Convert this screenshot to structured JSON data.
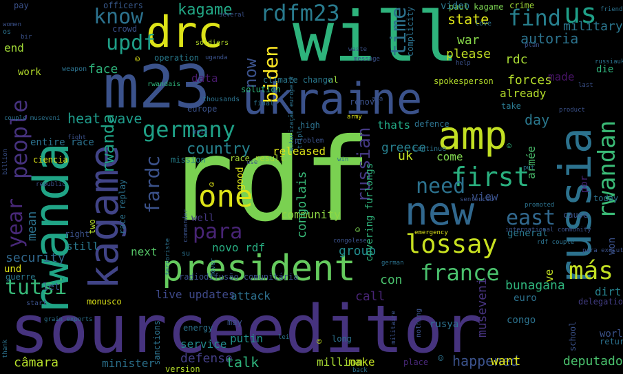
{
  "words": [
    {
      "text": "rdf",
      "color": "#7ad151"
    },
    {
      "text": "sourceeditor",
      "color": "#46337e"
    },
    {
      "text": "will",
      "color": "#2eb37c"
    },
    {
      "text": "m23",
      "color": "#3b528b"
    },
    {
      "text": "ukraine",
      "color": "#3b528b"
    },
    {
      "text": "president",
      "color": "#65cb5e"
    },
    {
      "text": "rwanda",
      "color": "#20a486"
    },
    {
      "text": "russia",
      "color": "#2c728e"
    },
    {
      "text": "kagame",
      "color": "#414487"
    },
    {
      "text": "drc",
      "color": "#dde318"
    },
    {
      "text": "amp",
      "color": "#c2df23"
    },
    {
      "text": "new",
      "color": "#31688e"
    },
    {
      "text": "lossay",
      "color": "#c8e020"
    },
    {
      "text": "one",
      "color": "#dde318"
    },
    {
      "text": "germany",
      "color": "#1fa187"
    },
    {
      "text": "first",
      "color": "#2ab07f"
    },
    {
      "text": "rwandan",
      "color": "#3aba76"
    },
    {
      "text": "más",
      "color": "#c2df23"
    },
    {
      "text": "france",
      "color": "#4ac16d"
    },
    {
      "text": "people",
      "color": "#46327e"
    },
    {
      "text": "year",
      "color": "#482878"
    },
    {
      "text": "fardc",
      "color": "#3b528b"
    },
    {
      "text": "updf",
      "color": "#1fa088"
    },
    {
      "text": "know",
      "color": "#2c728e"
    },
    {
      "text": "rdfm23",
      "color": "#297b8e"
    },
    {
      "text": "biden",
      "color": "#fde725"
    },
    {
      "text": "now",
      "color": "#3b528b"
    },
    {
      "text": "find",
      "color": "#27808e"
    },
    {
      "text": "us",
      "color": "#1fa088"
    },
    {
      "text": "time",
      "color": "#2c728e"
    },
    {
      "text": "para",
      "color": "#482475"
    },
    {
      "text": "need",
      "color": "#2c728e"
    },
    {
      "text": "east",
      "color": "#31688e"
    },
    {
      "text": "tutsi",
      "color": "#37b878"
    },
    {
      "text": "russian",
      "color": "#443983"
    },
    {
      "text": "country",
      "color": "#26828e"
    },
    {
      "text": "kagame",
      "color": "#22a785"
    },
    {
      "text": "military",
      "color": "#2a768e"
    },
    {
      "text": "autoria",
      "color": "#2c738e"
    },
    {
      "text": "rdc",
      "color": "#a8db34"
    },
    {
      "text": "please",
      "color": "#c2df23"
    },
    {
      "text": "forces",
      "color": "#b5de2b"
    },
    {
      "text": "state",
      "color": "#dde318"
    },
    {
      "text": "war",
      "color": "#86d549"
    },
    {
      "text": "day",
      "color": "#2a788e"
    },
    {
      "text": "heat wave",
      "color": "#1e9b8a"
    },
    {
      "text": "face",
      "color": "#2fb47c"
    },
    {
      "text": "data",
      "color": "#481a6c"
    },
    {
      "text": "mean",
      "color": "#2c728e"
    },
    {
      "text": "security",
      "color": "#31688e"
    },
    {
      "text": "end",
      "color": "#a2da37"
    },
    {
      "text": "released",
      "color": "#dde318"
    },
    {
      "text": "greece",
      "color": "#277f8e"
    },
    {
      "text": "uk",
      "color": "#c0df25"
    },
    {
      "text": "come",
      "color": "#7fd34e"
    },
    {
      "text": "thats",
      "color": "#22a884"
    },
    {
      "text": "view",
      "color": "#3b528b"
    },
    {
      "text": "already",
      "color": "#b5de2b"
    },
    {
      "text": "made",
      "color": "#471365"
    },
    {
      "text": "take",
      "color": "#2a788e"
    },
    {
      "text": "community",
      "color": "#8fd744"
    },
    {
      "text": "well",
      "color": "#453781"
    },
    {
      "text": "novo rdf",
      "color": "#27ad81"
    },
    {
      "text": "next",
      "color": "#56c667"
    },
    {
      "text": "still",
      "color": "#2a788e"
    },
    {
      "text": "group",
      "color": "#228b8d"
    },
    {
      "text": "con",
      "color": "#4ac16d"
    },
    {
      "text": "call",
      "color": "#482475"
    },
    {
      "text": "attack",
      "color": "#2d708e"
    },
    {
      "text": "live updates",
      "color": "#3e4989"
    },
    {
      "text": "bunagana",
      "color": "#2fb47c"
    },
    {
      "text": "euro",
      "color": "#2c728e"
    },
    {
      "text": "general",
      "color": "#2a788e"
    },
    {
      "text": "museveni",
      "color": "#46337e"
    },
    {
      "text": "happened",
      "color": "#3b528b"
    },
    {
      "text": "want",
      "color": "#dde318"
    },
    {
      "text": "deputados",
      "color": "#4ac16d"
    },
    {
      "text": "câmara",
      "color": "#b5de2b"
    },
    {
      "text": "minister",
      "color": "#2c728e"
    },
    {
      "text": "defense",
      "color": "#433e85"
    },
    {
      "text": "talk",
      "color": "#2fb47c"
    },
    {
      "text": "million",
      "color": "#a8db34"
    },
    {
      "text": "make",
      "color": "#c2df23"
    },
    {
      "text": "service",
      "color": "#238a8d"
    },
    {
      "text": "putin",
      "color": "#21918c"
    },
    {
      "text": "und",
      "color": "#dde318"
    },
    {
      "text": "guerre",
      "color": "#2a788e"
    },
    {
      "text": "entire race",
      "color": "#2c728e"
    },
    {
      "text": "work",
      "color": "#b5de2b"
    },
    {
      "text": "pay",
      "color": "#3b528b"
    },
    {
      "text": "officers",
      "color": "#38598c"
    },
    {
      "text": "paul kagame",
      "color": "#7ad151"
    },
    {
      "text": "crime",
      "color": "#a0da39"
    },
    {
      "text": "operation",
      "color": "#297b8e"
    },
    {
      "text": "soldiers",
      "color": "#b5de2b"
    },
    {
      "text": "video",
      "color": "#2a788e"
    },
    {
      "text": "al",
      "color": "#9bd93c"
    },
    {
      "text": "spokesperson",
      "color": "#b5de2b"
    },
    {
      "text": "climate change",
      "color": "#2a788e"
    },
    {
      "text": "solution",
      "color": "#2fb47c"
    },
    {
      "text": "europe",
      "color": "#3b528b"
    },
    {
      "text": "final",
      "color": "#2c728e"
    },
    {
      "text": "renova",
      "color": "#3b528b"
    },
    {
      "text": "high",
      "color": "#2c728e"
    },
    {
      "text": "defence",
      "color": "#2c728e"
    },
    {
      "text": "continue",
      "color": "#2c728e"
    },
    {
      "text": "mission",
      "color": "#26828e"
    },
    {
      "text": "race result",
      "color": "#a8db34"
    },
    {
      "text": "two",
      "color": "#b5de2b"
    },
    {
      "text": "race replay",
      "color": "#2c728e"
    },
    {
      "text": "covering furlongs",
      "color": "#2fb47c"
    },
    {
      "text": "congolais",
      "color": "#38b977"
    },
    {
      "text": "good",
      "color": "#dde318"
    },
    {
      "text": "won",
      "color": "#3b528b"
    },
    {
      "text": "today",
      "color": "#2c728e"
    },
    {
      "text": "cause",
      "color": "#3b528b"
    },
    {
      "text": "dirt",
      "color": "#26828e"
    },
    {
      "text": "ve",
      "color": "#c2df23"
    },
    {
      "text": "die",
      "color": "#2fb47c"
    },
    {
      "text": "por",
      "color": "#482475"
    },
    {
      "text": "armée",
      "color": "#4ac16d"
    },
    {
      "text": "right",
      "color": "#3b528b"
    },
    {
      "text": "congo",
      "color": "#2c728e"
    },
    {
      "text": "rusya",
      "color": "#2c728e"
    },
    {
      "text": "world",
      "color": "#3b528b"
    },
    {
      "text": "return",
      "color": "#2c728e"
    },
    {
      "text": "long",
      "color": "#2c728e"
    },
    {
      "text": "place",
      "color": "#482878"
    },
    {
      "text": "energy",
      "color": "#2c728e"
    },
    {
      "text": "may",
      "color": "#3b528b"
    },
    {
      "text": "version",
      "color": "#b5de2b"
    },
    {
      "text": "sanctions",
      "color": "#2c728e"
    },
    {
      "text": "monusco",
      "color": "#dde318"
    },
    {
      "text": "delegation",
      "color": "#433e85"
    },
    {
      "text": "school",
      "color": "#3b528b"
    },
    {
      "text": "complicity",
      "color": "#2c728e"
    },
    {
      "text": "ciencia",
      "color": "#dde318"
    },
    {
      "text": "os",
      "color": "#2c728e"
    },
    {
      "text": "weapon",
      "color": "#2c728e"
    },
    {
      "text": "let",
      "color": "#3b528b"
    },
    {
      "text": "rwandais",
      "color": "#2fb47c"
    },
    {
      "text": "thousands",
      "color": "#2c728e"
    },
    {
      "text": "love",
      "color": "#2c728e"
    },
    {
      "text": "plan",
      "color": "#3b528b"
    },
    {
      "text": "help",
      "color": "#3b528b"
    },
    {
      "text": "waste",
      "color": "#3b528b"
    },
    {
      "text": "message",
      "color": "#3b528b"
    },
    {
      "text": "last",
      "color": "#3b528b"
    },
    {
      "text": "product",
      "color": "#3b528b"
    },
    {
      "text": "friend",
      "color": "#2c728e"
    },
    {
      "text": "problem",
      "color": "#3b528b"
    },
    {
      "text": "army",
      "color": "#dde318"
    },
    {
      "text": "start",
      "color": "#3b528b"
    },
    {
      "text": "grain exports",
      "color": "#2c728e"
    },
    {
      "text": "lei",
      "color": "#2c728e"
    },
    {
      "text": "emergency",
      "color": "#dde318"
    },
    {
      "text": "international community",
      "color": "#3b528b"
    },
    {
      "text": "rdf couple",
      "color": "#2c728e"
    },
    {
      "text": "para executar",
      "color": "#3b528b"
    },
    {
      "text": "congolese",
      "color": "#3b528b"
    },
    {
      "text": "german",
      "color": "#2c728e"
    },
    {
      "text": "nothing",
      "color": "#3b528b"
    },
    {
      "text": "militaire",
      "color": "#3b528b"
    },
    {
      "text": "back",
      "color": "#2c728e"
    },
    {
      "text": "radiodifusão comunitária",
      "color": "#3b528b"
    },
    {
      "text": "su",
      "color": "#2c728e"
    },
    {
      "text": "never",
      "color": "#2c728e"
    },
    {
      "text": "terroriste",
      "color": "#2c728e"
    },
    {
      "text": "couple museveni",
      "color": "#2c728e"
    },
    {
      "text": "fight",
      "color": "#3b528b"
    },
    {
      "text": "mois",
      "color": "#3b528b"
    },
    {
      "text": "use",
      "color": "#3b528b"
    },
    {
      "text": "win",
      "color": "#2c728e"
    },
    {
      "text": "put",
      "color": "#2c728e"
    },
    {
      "text": "promoted",
      "color": "#2c728e"
    },
    {
      "text": "women",
      "color": "#3b528b"
    },
    {
      "text": "bir",
      "color": "#3b528b"
    },
    {
      "text": "uganda",
      "color": "#3b528b"
    },
    {
      "text": "several",
      "color": "#3b528b"
    },
    {
      "text": "billion",
      "color": "#3b528b"
    },
    {
      "text": "republic",
      "color": "#3b528b"
    },
    {
      "text": "commander",
      "color": "#3b528b"
    },
    {
      "text": "autorização europeia",
      "color": "#2c728e"
    },
    {
      "text": "triple",
      "color": "#2c728e"
    },
    {
      "text": "thank",
      "color": "#2c728e"
    },
    {
      "text": "russiaukraine updates",
      "color": "#2c728e"
    },
    {
      "text": "sentenced",
      "color": "#3b528b"
    },
    {
      "text": "ara",
      "color": "#3b528b"
    },
    {
      "text": "crowd",
      "color": "#3b528b"
    },
    {
      "text": "☺",
      "color": "#dde318"
    },
    {
      "text": "☺",
      "color": "#2c728e"
    },
    {
      "text": "☺",
      "color": "#7ad151"
    },
    {
      "text": "☺",
      "color": "#dde318"
    },
    {
      "text": "☺",
      "color": "#2fb47c"
    },
    {
      "text": "☺",
      "color": "#c2df23"
    },
    {
      "text": "☺",
      "color": "#dde318"
    }
  ]
}
